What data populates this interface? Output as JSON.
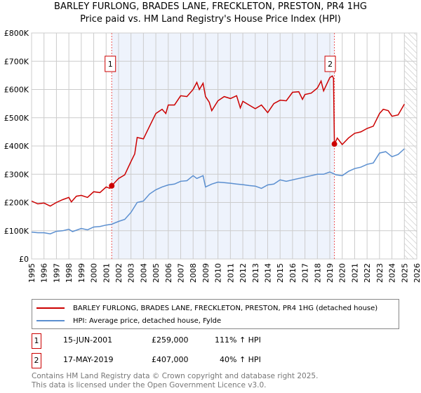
{
  "chart_data": {
    "type": "line",
    "title": "BARLEY FURLONG, BRADES LANE, FRECKLETON, PRESTON, PR4 1HG",
    "subtitle": "Price paid vs. HM Land Registry's House Price Index (HPI)",
    "xlim": [
      1995,
      2026
    ],
    "ylim": [
      0,
      800000
    ],
    "x_ticks": [
      "1995",
      "1996",
      "1997",
      "1998",
      "1999",
      "2000",
      "2001",
      "2002",
      "2003",
      "2004",
      "2005",
      "2006",
      "2007",
      "2008",
      "2009",
      "2010",
      "2011",
      "2012",
      "2013",
      "2014",
      "2015",
      "2016",
      "2017",
      "2018",
      "2019",
      "2020",
      "2021",
      "2022",
      "2023",
      "2024",
      "2025",
      "2026"
    ],
    "y_ticks": [
      {
        "v": 0,
        "label": "£0"
      },
      {
        "v": 100000,
        "label": "£100K"
      },
      {
        "v": 200000,
        "label": "£200K"
      },
      {
        "v": 300000,
        "label": "£300K"
      },
      {
        "v": 400000,
        "label": "£400K"
      },
      {
        "v": 500000,
        "label": "£500K"
      },
      {
        "v": 600000,
        "label": "£600K"
      },
      {
        "v": 700000,
        "label": "£700K"
      },
      {
        "v": 800000,
        "label": "£800K"
      }
    ],
    "grid": true,
    "shaded_range": [
      2001.45,
      2019.37
    ],
    "forecast_hatch_from": 2025.0,
    "series": [
      {
        "name": "BARLEY FURLONG, BRADES LANE, FRECKLETON, PRESTON, PR4 1HG (detached house)",
        "color": "#cc0000",
        "x": [
          1995,
          1995.5,
          1996,
          1996.5,
          1997,
          1997.5,
          1998,
          1998.2,
          1998.6,
          1999,
          1999.5,
          2000,
          2000.5,
          2001,
          2001.3,
          2001.45,
          2002,
          2002.5,
          2003,
          2003.3,
          2003.5,
          2004,
          2004.5,
          2005,
          2005.5,
          2005.8,
          2006,
          2006.5,
          2007,
          2007.5,
          2008,
          2008.3,
          2008.5,
          2008.8,
          2009,
          2009.3,
          2009.5,
          2010,
          2010.5,
          2011,
          2011.5,
          2011.8,
          2012,
          2012.5,
          2013,
          2013.5,
          2014,
          2014.5,
          2015,
          2015.5,
          2016,
          2016.5,
          2016.8,
          2017,
          2017.5,
          2018,
          2018.3,
          2018.5,
          2019,
          2019.2,
          2019.3,
          2019.37,
          2019.6,
          2020,
          2020.5,
          2021,
          2021.5,
          2022,
          2022.5,
          2023,
          2023.3,
          2023.7,
          2024,
          2024.5,
          2025
        ],
        "y": [
          205000,
          195000,
          198000,
          187000,
          200000,
          210000,
          218000,
          202000,
          222000,
          225000,
          218000,
          238000,
          235000,
          255000,
          250000,
          259000,
          285000,
          298000,
          345000,
          372000,
          430000,
          425000,
          470000,
          515000,
          530000,
          515000,
          545000,
          545000,
          578000,
          575000,
          600000,
          625000,
          600000,
          622000,
          575000,
          555000,
          525000,
          560000,
          575000,
          568000,
          578000,
          535000,
          558000,
          545000,
          532000,
          545000,
          518000,
          550000,
          562000,
          560000,
          590000,
          592000,
          565000,
          582000,
          587000,
          605000,
          630000,
          595000,
          642000,
          648000,
          640000,
          407000,
          428000,
          405000,
          428000,
          445000,
          450000,
          462000,
          470000,
          515000,
          530000,
          525000,
          505000,
          510000,
          548000
        ]
      },
      {
        "name": "HPI: Average price, detached house, Fylde",
        "color": "#5b8fd0",
        "x": [
          1995,
          1995.5,
          1996,
          1996.5,
          1997,
          1997.5,
          1998,
          1998.3,
          1999,
          1999.5,
          2000,
          2000.5,
          2001,
          2001.45,
          2002,
          2002.5,
          2003,
          2003.5,
          2004,
          2004.5,
          2005,
          2005.5,
          2006,
          2006.5,
          2007,
          2007.5,
          2008,
          2008.3,
          2008.8,
          2009,
          2009.5,
          2010,
          2010.5,
          2011,
          2011.5,
          2012,
          2012.5,
          2013,
          2013.5,
          2014,
          2014.5,
          2015,
          2015.5,
          2016,
          2016.5,
          2017,
          2017.5,
          2018,
          2018.5,
          2019,
          2019.5,
          2020,
          2020.5,
          2021,
          2021.5,
          2022,
          2022.5,
          2023,
          2023.5,
          2024,
          2024.5,
          2025
        ],
        "y": [
          95000,
          93000,
          93000,
          89000,
          98000,
          100000,
          105000,
          97000,
          108000,
          103000,
          113000,
          115000,
          120000,
          123000,
          133000,
          140000,
          165000,
          200000,
          205000,
          230000,
          245000,
          255000,
          262000,
          265000,
          275000,
          277000,
          295000,
          285000,
          295000,
          255000,
          265000,
          272000,
          270000,
          268000,
          265000,
          263000,
          260000,
          258000,
          250000,
          262000,
          265000,
          280000,
          275000,
          280000,
          285000,
          290000,
          295000,
          300000,
          300000,
          308000,
          298000,
          295000,
          310000,
          320000,
          325000,
          335000,
          340000,
          375000,
          380000,
          362000,
          370000,
          390000
        ]
      }
    ],
    "annotations": [
      {
        "label": "1",
        "x": 2001.45,
        "y": 259000
      },
      {
        "label": "2",
        "x": 2019.37,
        "y": 407000
      }
    ]
  },
  "legend": [
    {
      "label": "BARLEY FURLONG, BRADES LANE, FRECKLETON, PRESTON, PR4 1HG (detached house)",
      "color": "#cc0000"
    },
    {
      "label": "HPI: Average price, detached house, Fylde",
      "color": "#5b8fd0"
    }
  ],
  "sales": [
    {
      "num": "1",
      "date": "15-JUN-2001",
      "price": "£259,000",
      "hpi": "111% ↑ HPI"
    },
    {
      "num": "2",
      "date": "17-MAY-2019",
      "price": "£407,000",
      "hpi": "40% ↑ HPI"
    }
  ],
  "footer": [
    "Contains HM Land Registry data © Crown copyright and database right 2025.",
    "This data is licensed under the Open Government Licence v3.0."
  ]
}
